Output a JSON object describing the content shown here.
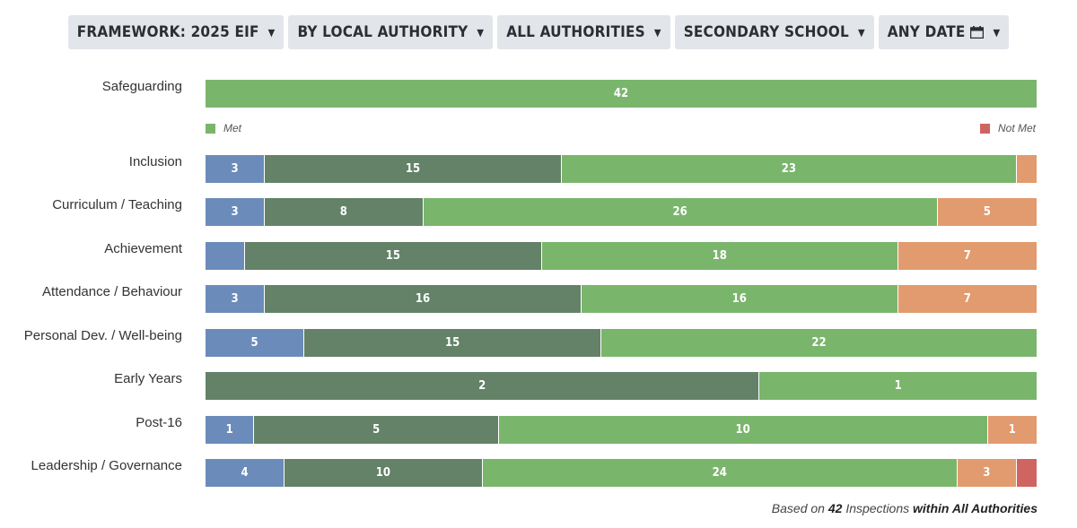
{
  "filters": [
    {
      "label": "FRAMEWORK: 2025 EIF",
      "icon": null
    },
    {
      "label": "BY LOCAL AUTHORITY",
      "icon": null
    },
    {
      "label": "ALL AUTHORITIES",
      "icon": null
    },
    {
      "label": "SECONDARY SCHOOL",
      "icon": null
    },
    {
      "label": "ANY DATE",
      "icon": "calendar-icon"
    }
  ],
  "legend": {
    "met": "Met",
    "not_met": "Not Met"
  },
  "footer": {
    "prefix": "Based on",
    "count": "42",
    "middle": "Inspections",
    "suffix": "within All Authorities"
  },
  "colors": {
    "blue": "#6b8cba",
    "darkgreen": "#638267",
    "green": "#7ab56c",
    "orange": "#e29b6e",
    "red": "#d06460"
  },
  "chart_data": {
    "type": "bar",
    "orientation": "horizontal",
    "stacked": true,
    "normalized": true,
    "categories": [
      "Safeguarding",
      "Inclusion",
      "Curriculum / Teaching",
      "Achievement",
      "Attendance / Behaviour",
      "Personal Dev. / Well-being",
      "Early Years",
      "Post-16",
      "Leadership / Governance"
    ],
    "rows": [
      {
        "category": "Safeguarding",
        "segments": [
          {
            "color": "green",
            "value": 42,
            "label": "42"
          }
        ]
      },
      {
        "category": "Inclusion",
        "segments": [
          {
            "color": "blue",
            "value": 3,
            "label": "3"
          },
          {
            "color": "darkgreen",
            "value": 15,
            "label": "15"
          },
          {
            "color": "green",
            "value": 23,
            "label": "23"
          },
          {
            "color": "orange",
            "value": 1,
            "label": ""
          }
        ]
      },
      {
        "category": "Curriculum / Teaching",
        "segments": [
          {
            "color": "blue",
            "value": 3,
            "label": "3"
          },
          {
            "color": "darkgreen",
            "value": 8,
            "label": "8"
          },
          {
            "color": "green",
            "value": 26,
            "label": "26"
          },
          {
            "color": "orange",
            "value": 5,
            "label": "5"
          }
        ]
      },
      {
        "category": "Achievement",
        "segments": [
          {
            "color": "blue",
            "value": 2,
            "label": ""
          },
          {
            "color": "darkgreen",
            "value": 15,
            "label": "15"
          },
          {
            "color": "green",
            "value": 18,
            "label": "18"
          },
          {
            "color": "orange",
            "value": 7,
            "label": "7"
          }
        ]
      },
      {
        "category": "Attendance / Behaviour",
        "segments": [
          {
            "color": "blue",
            "value": 3,
            "label": "3"
          },
          {
            "color": "darkgreen",
            "value": 16,
            "label": "16"
          },
          {
            "color": "green",
            "value": 16,
            "label": "16"
          },
          {
            "color": "orange",
            "value": 7,
            "label": "7"
          }
        ]
      },
      {
        "category": "Personal Dev. / Well-being",
        "segments": [
          {
            "color": "blue",
            "value": 5,
            "label": "5"
          },
          {
            "color": "darkgreen",
            "value": 15,
            "label": "15"
          },
          {
            "color": "green",
            "value": 22,
            "label": "22"
          }
        ]
      },
      {
        "category": "Early Years",
        "segments": [
          {
            "color": "darkgreen",
            "value": 2,
            "label": "2"
          },
          {
            "color": "green",
            "value": 1,
            "label": "1"
          }
        ]
      },
      {
        "category": "Post-16",
        "segments": [
          {
            "color": "blue",
            "value": 1,
            "label": "1"
          },
          {
            "color": "darkgreen",
            "value": 5,
            "label": "5"
          },
          {
            "color": "green",
            "value": 10,
            "label": "10"
          },
          {
            "color": "orange",
            "value": 1,
            "label": "1"
          }
        ]
      },
      {
        "category": "Leadership / Governance",
        "segments": [
          {
            "color": "blue",
            "value": 4,
            "label": "4"
          },
          {
            "color": "darkgreen",
            "value": 10,
            "label": "10"
          },
          {
            "color": "green",
            "value": 24,
            "label": "24"
          },
          {
            "color": "orange",
            "value": 3,
            "label": "3"
          },
          {
            "color": "red",
            "value": 1,
            "label": ""
          }
        ]
      }
    ]
  }
}
